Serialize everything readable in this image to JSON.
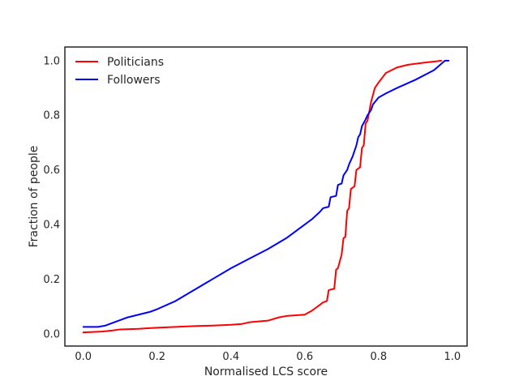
{
  "chart_data": {
    "type": "line",
    "xlabel": "Normalised LCS score",
    "ylabel": "Fraction of people",
    "xlim": [
      -0.05,
      1.04
    ],
    "ylim": [
      -0.045,
      1.05
    ],
    "x_ticks": [
      "0.0",
      "0.2",
      "0.4",
      "0.6",
      "0.8",
      "1.0"
    ],
    "y_ticks": [
      "0.0",
      "0.2",
      "0.4",
      "0.6",
      "0.8",
      "1.0"
    ],
    "grid": false,
    "legend_position": "top-left",
    "series": [
      {
        "name": "Politicians",
        "color": "#ff0000",
        "points": [
          [
            0.0,
            0.005
          ],
          [
            0.05,
            0.008
          ],
          [
            0.08,
            0.012
          ],
          [
            0.1,
            0.016
          ],
          [
            0.15,
            0.018
          ],
          [
            0.17,
            0.02
          ],
          [
            0.2,
            0.022
          ],
          [
            0.25,
            0.025
          ],
          [
            0.3,
            0.028
          ],
          [
            0.35,
            0.03
          ],
          [
            0.4,
            0.033
          ],
          [
            0.43,
            0.036
          ],
          [
            0.45,
            0.042
          ],
          [
            0.5,
            0.048
          ],
          [
            0.53,
            0.06
          ],
          [
            0.55,
            0.065
          ],
          [
            0.6,
            0.07
          ],
          [
            0.62,
            0.085
          ],
          [
            0.64,
            0.105
          ],
          [
            0.65,
            0.115
          ],
          [
            0.66,
            0.12
          ],
          [
            0.665,
            0.16
          ],
          [
            0.68,
            0.165
          ],
          [
            0.685,
            0.235
          ],
          [
            0.69,
            0.24
          ],
          [
            0.7,
            0.29
          ],
          [
            0.705,
            0.35
          ],
          [
            0.71,
            0.355
          ],
          [
            0.715,
            0.45
          ],
          [
            0.72,
            0.46
          ],
          [
            0.725,
            0.53
          ],
          [
            0.735,
            0.54
          ],
          [
            0.74,
            0.6
          ],
          [
            0.75,
            0.61
          ],
          [
            0.755,
            0.68
          ],
          [
            0.76,
            0.69
          ],
          [
            0.765,
            0.77
          ],
          [
            0.77,
            0.78
          ],
          [
            0.78,
            0.85
          ],
          [
            0.79,
            0.9
          ],
          [
            0.8,
            0.92
          ],
          [
            0.82,
            0.955
          ],
          [
            0.85,
            0.975
          ],
          [
            0.88,
            0.985
          ],
          [
            0.92,
            0.992
          ],
          [
            0.96,
            0.998
          ],
          [
            0.97,
            1.0
          ]
        ]
      },
      {
        "name": "Followers",
        "color": "#0000ff",
        "points": [
          [
            0.0,
            0.025
          ],
          [
            0.04,
            0.025
          ],
          [
            0.06,
            0.03
          ],
          [
            0.08,
            0.04
          ],
          [
            0.1,
            0.05
          ],
          [
            0.12,
            0.06
          ],
          [
            0.15,
            0.07
          ],
          [
            0.18,
            0.08
          ],
          [
            0.2,
            0.09
          ],
          [
            0.25,
            0.12
          ],
          [
            0.3,
            0.16
          ],
          [
            0.35,
            0.2
          ],
          [
            0.4,
            0.24
          ],
          [
            0.45,
            0.275
          ],
          [
            0.5,
            0.31
          ],
          [
            0.55,
            0.35
          ],
          [
            0.6,
            0.4
          ],
          [
            0.62,
            0.42
          ],
          [
            0.64,
            0.445
          ],
          [
            0.65,
            0.46
          ],
          [
            0.665,
            0.465
          ],
          [
            0.67,
            0.5
          ],
          [
            0.685,
            0.505
          ],
          [
            0.69,
            0.545
          ],
          [
            0.7,
            0.55
          ],
          [
            0.705,
            0.58
          ],
          [
            0.715,
            0.6
          ],
          [
            0.72,
            0.62
          ],
          [
            0.73,
            0.65
          ],
          [
            0.735,
            0.67
          ],
          [
            0.74,
            0.69
          ],
          [
            0.745,
            0.72
          ],
          [
            0.75,
            0.73
          ],
          [
            0.755,
            0.76
          ],
          [
            0.765,
            0.785
          ],
          [
            0.77,
            0.8
          ],
          [
            0.78,
            0.82
          ],
          [
            0.785,
            0.84
          ],
          [
            0.8,
            0.865
          ],
          [
            0.82,
            0.88
          ],
          [
            0.85,
            0.9
          ],
          [
            0.9,
            0.93
          ],
          [
            0.95,
            0.965
          ],
          [
            0.98,
            1.0
          ],
          [
            0.99,
            1.0
          ]
        ]
      }
    ]
  }
}
